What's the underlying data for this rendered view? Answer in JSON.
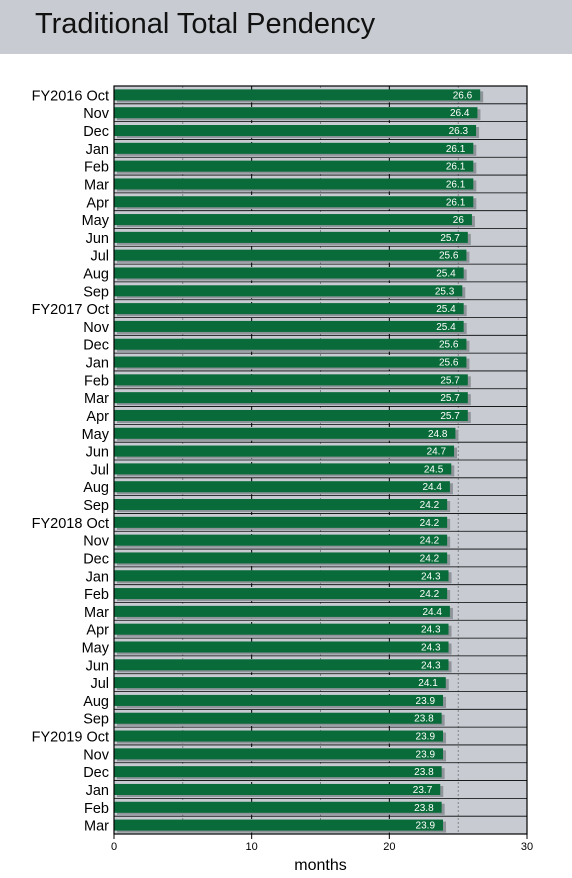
{
  "title": "Traditional Total Pendency",
  "chart_data": {
    "type": "bar",
    "orientation": "horizontal",
    "title": "Traditional Total Pendency",
    "xlabel": "months",
    "ylabel": "",
    "xlim": [
      0,
      30
    ],
    "xticks": [
      0,
      10,
      20,
      30
    ],
    "grid": true,
    "legend": "none",
    "colors": {
      "bar": "#0a6b3a",
      "plot_background": "#c8ccd2",
      "bar_shadow": "#8f949a"
    },
    "categories": [
      "FY2016 Oct",
      "Nov",
      "Dec",
      "Jan",
      "Feb",
      "Mar",
      "Apr",
      "May",
      "Jun",
      "Jul",
      "Aug",
      "Sep",
      "FY2017 Oct",
      "Nov",
      "Dec",
      "Jan",
      "Feb",
      "Mar",
      "Apr",
      "May",
      "Jun",
      "Jul",
      "Aug",
      "Sep",
      "FY2018 Oct",
      "Nov",
      "Dec",
      "Jan",
      "Feb",
      "Mar",
      "Apr",
      "May",
      "Jun",
      "Jul",
      "Aug",
      "Sep",
      "FY2019 Oct",
      "Nov",
      "Dec",
      "Jan",
      "Feb",
      "Mar"
    ],
    "values": [
      26.6,
      26.4,
      26.3,
      26.1,
      26.1,
      26.1,
      26.1,
      26,
      25.7,
      25.6,
      25.4,
      25.3,
      25.4,
      25.4,
      25.6,
      25.6,
      25.7,
      25.7,
      25.7,
      24.8,
      24.7,
      24.5,
      24.4,
      24.2,
      24.2,
      24.2,
      24.2,
      24.3,
      24.2,
      24.4,
      24.3,
      24.3,
      24.3,
      24.1,
      23.9,
      23.8,
      23.9,
      23.9,
      23.8,
      23.7,
      23.8,
      23.9
    ]
  }
}
